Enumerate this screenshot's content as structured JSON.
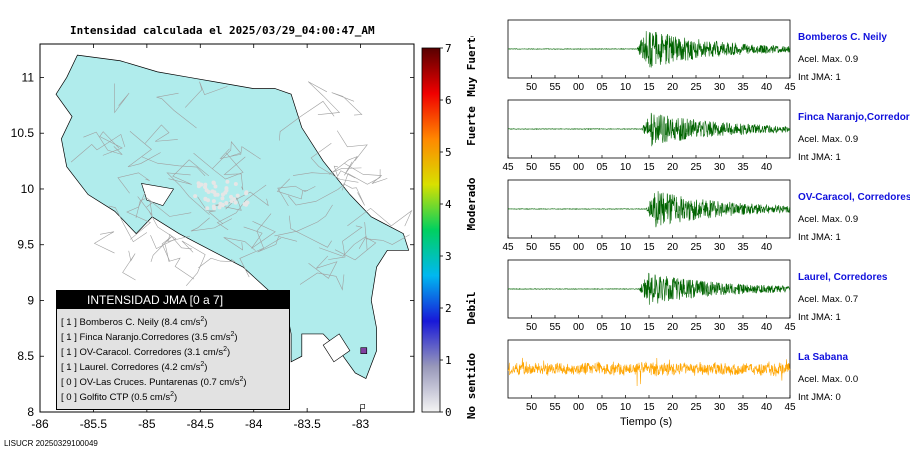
{
  "header": {
    "title": "Intensidad calculada el 2025/03/29_04:00:47_AM"
  },
  "footer": {
    "event_id": "LISUCR 20250329100049"
  },
  "chart_data": [
    {
      "type": "map",
      "title": "Intensidad calculada el 2025/03/29_04:00:47_AM",
      "x_ticks": [
        "-86",
        "-85.5",
        "-85",
        "-84.5",
        "-84",
        "-83.5",
        "-83"
      ],
      "y_ticks": [
        "8",
        "8.5",
        "9",
        "9.5",
        "10",
        "10.5",
        "11"
      ],
      "xlim": [
        -86,
        -82.5
      ],
      "ylim": [
        8,
        11.3
      ],
      "land_color": "#b0ecec",
      "legend": {
        "title": "INTENSIDAD JMA [0 a 7]",
        "items": [
          {
            "intensity": "[ 1 ]",
            "name": "Bomberos C. Neily",
            "acc": "(8.4 cm/s",
            "unit_exp": "2",
            "close": ")"
          },
          {
            "intensity": "[ 1 ]",
            "name": "Finca Naranjo.Corredores",
            "acc": "(3.5 cm/s",
            "unit_exp": "2",
            "close": ")"
          },
          {
            "intensity": "[ 1 ]",
            "name": "OV-Caracol. Corredores",
            "acc": "(3.1 cm/s",
            "unit_exp": "2",
            "close": ")"
          },
          {
            "intensity": "[ 1 ]",
            "name": "Laurel. Corredores",
            "acc": "(4.2 cm/s",
            "unit_exp": "2",
            "close": ")"
          },
          {
            "intensity": "[ 0 ]",
            "name": "OV-Las Cruces. Puntarenas",
            "acc": "(0.7 cm/s",
            "unit_exp": "2",
            "close": ")"
          },
          {
            "intensity": "[ 0 ]",
            "name": "Golfito CTP",
            "acc": "(0.5 cm/s",
            "unit_exp": "2",
            "close": ")"
          }
        ]
      }
    },
    {
      "type": "colorbar",
      "range": [
        0,
        7
      ],
      "ticks": [
        "0",
        "1",
        "2",
        "3",
        "4",
        "5",
        "6",
        "7"
      ],
      "category_labels": [
        "No sentido",
        "Debil",
        "Moderado",
        "Fuerte",
        "Muy Fuerte"
      ],
      "gradient": [
        "#f4f4f4",
        "#9898ba",
        "#1818d8",
        "#00b8f0",
        "#00d060",
        "#d8e000",
        "#ff8800",
        "#f00000",
        "#580000"
      ]
    },
    {
      "type": "line",
      "xlabel": "Tiempo (s)",
      "series": [
        {
          "name": "Bomberos C. Neily",
          "acel_max": "Acel. Max. 0.9",
          "int_jma": "Int JMA: 1",
          "color": "#006400",
          "x_ticks": [
            "50",
            "55",
            "00",
            "05",
            "10",
            "15",
            "20",
            "25",
            "30",
            "35",
            "40",
            "45"
          ],
          "tick_start": 50,
          "onset": 27.5,
          "amplitude": 0.75
        },
        {
          "name": "Finca Naranjo,Corredores",
          "acel_max": "Acel. Max. 0.9",
          "int_jma": "Int JMA: 1",
          "color": "#006400",
          "x_ticks": [
            "45",
            "50",
            "55",
            "00",
            "05",
            "10",
            "15",
            "20",
            "25",
            "30",
            "35",
            "40"
          ],
          "tick_start": 45,
          "onset": 28.5,
          "amplitude": 0.65
        },
        {
          "name": "OV-Caracol, Corredores",
          "acel_max": "Acel. Max. 0.9",
          "int_jma": "Int JMA: 1",
          "color": "#006400",
          "x_ticks": [
            "45",
            "50",
            "55",
            "00",
            "05",
            "10",
            "15",
            "20",
            "25",
            "30",
            "35",
            "40"
          ],
          "tick_start": 45,
          "onset": 29.5,
          "amplitude": 0.7
        },
        {
          "name": "Laurel, Corredores",
          "acel_max": "Acel. Max. 0.7",
          "int_jma": "Int JMA: 1",
          "color": "#006400",
          "x_ticks": [
            "50",
            "55",
            "00",
            "05",
            "10",
            "15",
            "20",
            "25",
            "30",
            "35",
            "40",
            "45"
          ],
          "tick_start": 50,
          "onset": 28.0,
          "amplitude": 0.6
        },
        {
          "name": "La Sabana",
          "acel_max": "Acel. Max. 0.0",
          "int_jma": "Int JMA: 0",
          "color": "#ffa500",
          "x_ticks": [
            "50",
            "55",
            "00",
            "05",
            "10",
            "15",
            "20",
            "25",
            "30",
            "35",
            "40",
            "45"
          ],
          "tick_start": 50,
          "onset": 0,
          "amplitude": 0.35
        }
      ]
    }
  ]
}
